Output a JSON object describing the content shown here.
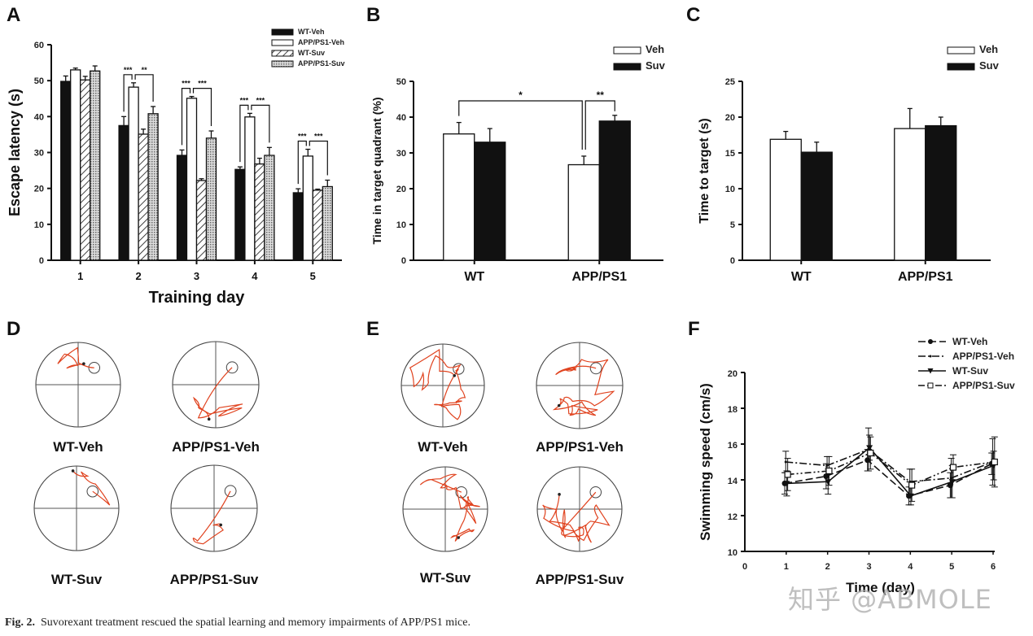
{
  "figure": {
    "caption_label": "Fig. 2.",
    "caption_text": "Suvorexant treatment rescued the spatial learning and memory impairments of APP/PS1 mice.",
    "watermark": "知乎 @ABMOLE"
  },
  "colors": {
    "track": "#e0431f",
    "axis": "#111111",
    "pool": "#333333"
  },
  "chart_data": [
    {
      "panel": "A",
      "type": "bar",
      "title": "",
      "xlabel": "Training  day",
      "ylabel": "Escape latency (s)",
      "ylim": [
        0,
        60
      ],
      "yticks": [
        0,
        10,
        20,
        30,
        40,
        50,
        60
      ],
      "categories": [
        "1",
        "2",
        "3",
        "4",
        "5"
      ],
      "legend": "top-right",
      "series": [
        {
          "name": "WT-Veh",
          "fill": "black",
          "values": [
            49.8,
            37.5,
            29.2,
            25.3,
            18.8
          ],
          "errors": [
            1.5,
            2.5,
            1.5,
            0.7,
            1.1
          ]
        },
        {
          "name": "APP/PS1-Veh",
          "fill": "white",
          "values": [
            53.0,
            48.2,
            45.1,
            39.9,
            29.0
          ],
          "errors": [
            0.5,
            1.2,
            0.5,
            1.0,
            1.9
          ]
        },
        {
          "name": "WT-Suv",
          "fill": "hatch",
          "values": [
            50.2,
            35.1,
            22.2,
            26.8,
            19.5
          ],
          "errors": [
            1.0,
            1.4,
            0.5,
            1.6,
            0.3
          ]
        },
        {
          "name": "APP/PS1-Suv",
          "fill": "dots",
          "values": [
            52.7,
            40.8,
            34.0,
            29.2,
            20.5
          ],
          "errors": [
            1.4,
            2.0,
            2.0,
            2.2,
            1.8
          ]
        }
      ],
      "annotations": [
        {
          "day": "2",
          "labels": [
            "***",
            "**"
          ]
        },
        {
          "day": "3",
          "labels": [
            "***",
            "***"
          ]
        },
        {
          "day": "4",
          "labels": [
            "***",
            "***"
          ]
        },
        {
          "day": "5",
          "labels": [
            "***",
            "***"
          ]
        }
      ]
    },
    {
      "panel": "B",
      "type": "bar",
      "title": "",
      "xlabel": "",
      "ylabel": "Time in target quadrant (%)",
      "ylim": [
        0,
        50
      ],
      "yticks": [
        0,
        10,
        20,
        30,
        40,
        50
      ],
      "categories": [
        "WT",
        "APP/PS1"
      ],
      "legend": "top-right",
      "series": [
        {
          "name": "Veh",
          "fill": "white",
          "values": [
            35.3,
            26.7
          ],
          "errors": [
            3.2,
            2.4
          ]
        },
        {
          "name": "Suv",
          "fill": "black",
          "values": [
            33.0,
            38.9
          ],
          "errors": [
            3.8,
            1.6
          ]
        }
      ],
      "annotations": [
        {
          "between": "WT-Veh / APP/PS1-Veh",
          "label": "*"
        },
        {
          "between": "APP/PS1-Veh / APP/PS1-Suv",
          "label": "**"
        }
      ]
    },
    {
      "panel": "C",
      "type": "bar",
      "title": "",
      "xlabel": "",
      "ylabel": "Time to target (s)",
      "ylim": [
        0,
        25
      ],
      "yticks": [
        0,
        5,
        10,
        15,
        20,
        25
      ],
      "categories": [
        "WT",
        "APP/PS1"
      ],
      "legend": "top-right",
      "series": [
        {
          "name": "Veh",
          "fill": "white",
          "values": [
            16.9,
            18.4
          ],
          "errors": [
            1.1,
            2.8
          ]
        },
        {
          "name": "Suv",
          "fill": "black",
          "values": [
            15.1,
            18.8
          ],
          "errors": [
            1.4,
            1.2
          ]
        }
      ]
    },
    {
      "panel": "F",
      "type": "line",
      "title": "",
      "xlabel": "Time (day)",
      "ylabel": "Swimming speed (cm/s)",
      "xlim": [
        0,
        6
      ],
      "ylim": [
        10,
        20
      ],
      "xticks": [
        0,
        1,
        2,
        3,
        4,
        5,
        6
      ],
      "yticks": [
        10,
        12,
        14,
        16,
        18,
        20
      ],
      "legend": "top-right",
      "x": [
        1,
        2,
        3,
        4,
        5,
        6
      ],
      "series": [
        {
          "name": "WT-Veh",
          "dash": "long-dash",
          "marker": "circle-filled",
          "values": [
            13.8,
            14.2,
            15.1,
            13.1,
            13.7,
            14.9
          ],
          "errors": [
            0.6,
            0.7,
            0.6,
            0.5,
            0.7,
            0.6
          ]
        },
        {
          "name": "APP/PS1-Veh",
          "dash": "dash-dot",
          "marker": "dot",
          "values": [
            15.0,
            14.8,
            15.7,
            13.9,
            14.1,
            15.0
          ],
          "errors": [
            0.6,
            0.5,
            1.2,
            0.7,
            1.1,
            1.3
          ]
        },
        {
          "name": "WT-Suv",
          "dash": "solid",
          "marker": "triangle-down",
          "values": [
            13.8,
            13.9,
            15.8,
            13.1,
            13.9,
            14.8
          ],
          "errors": [
            0.7,
            0.7,
            0.7,
            0.5,
            0.9,
            0.8
          ]
        },
        {
          "name": "APP/PS1-Suv",
          "dash": "dash-dot-dot",
          "marker": "square-open",
          "values": [
            14.3,
            14.5,
            15.5,
            13.7,
            14.7,
            15.0
          ],
          "errors": [
            0.9,
            0.8,
            0.9,
            0.9,
            0.7,
            1.4
          ]
        }
      ]
    }
  ],
  "tracks": {
    "D": {
      "panel": "D",
      "mazes": [
        {
          "label": "WT-Veh",
          "platform": "upper-right"
        },
        {
          "label": "APP/PS1-Veh",
          "platform": "upper-right"
        },
        {
          "label": "WT-Suv",
          "platform": "upper-right"
        },
        {
          "label": "APP/PS1-Suv",
          "platform": "upper-right"
        }
      ]
    },
    "E": {
      "panel": "E",
      "mazes": [
        {
          "label": "WT-Veh",
          "platform": "upper-right"
        },
        {
          "label": "APP/PS1-Veh",
          "platform": "upper-right"
        },
        {
          "label": "WT-Suv",
          "platform": "upper-right"
        },
        {
          "label": "APP/PS1-Suv",
          "platform": "upper-right"
        }
      ]
    }
  }
}
